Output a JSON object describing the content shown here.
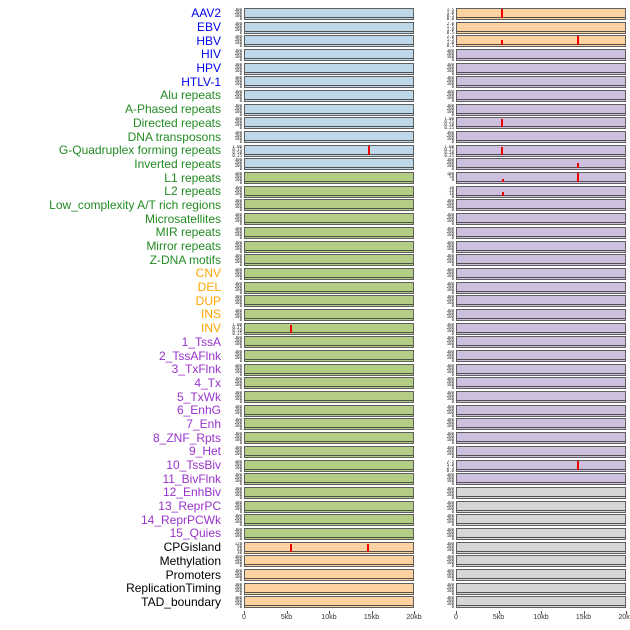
{
  "palette": {
    "label_colors": {
      "virus": "#0000ee",
      "repeat": "#228b22",
      "sv": "#ffa500",
      "chromhmm": "#9932cc",
      "other": "#000000"
    },
    "panel_colors": {
      "blue": "#bed8ea",
      "green": "#b3cd84",
      "peach": "#fcd2a0",
      "purple": "#cdc0df",
      "gray": "#d6d6d6"
    },
    "spike_color": "#ee0000",
    "baseline_color": "#3a3a3a",
    "axis_text_color": "#333333"
  },
  "chart_data": {
    "type": "line",
    "title": "",
    "description": "44 genomic feature tracks (virus, repeat, structural variant, chromatin state, regulatory), each with two signal panels over a 0-20kb window; flat baseline at 0 with isolated red peaks",
    "x_range_kb": [
      0,
      20
    ],
    "x_ticks": [
      "0",
      "5kb",
      "10kb",
      "15kb",
      "20kb"
    ],
    "x_tick_positions": [
      0,
      0.25,
      0.5,
      0.75,
      1
    ],
    "default_yticks": [
      "300",
      "200",
      "100",
      "0"
    ],
    "legend_position": "none",
    "grid": false,
    "rows": [
      {
        "label": "AAV2",
        "group": "virus",
        "left": {
          "bg": "blue"
        },
        "right": {
          "bg": "peach",
          "yticks": [
            "1.5",
            "1.0",
            "0.5",
            "0.0"
          ],
          "spikes": [
            {
              "x_kb": 5.3,
              "h": 0.85
            }
          ]
        }
      },
      {
        "label": "EBV",
        "group": "virus",
        "left": {
          "bg": "blue"
        },
        "right": {
          "bg": "peach",
          "yticks": [
            "2.0",
            "1.5",
            "1.0",
            "0.5",
            "0.0"
          ]
        }
      },
      {
        "label": "HBV",
        "group": "virus",
        "left": {
          "bg": "blue"
        },
        "right": {
          "bg": "peach",
          "yticks": [
            "2.0",
            "1.5",
            "1.0",
            "0.5",
            "0.0"
          ],
          "spikes": [
            {
              "x_kb": 5.3,
              "h": 0.5
            },
            {
              "x_kb": 14.4,
              "h": 0.9
            }
          ]
        }
      },
      {
        "label": "HIV",
        "group": "virus",
        "left": {
          "bg": "blue"
        },
        "right": {
          "bg": "purple"
        }
      },
      {
        "label": "HPV",
        "group": "virus",
        "left": {
          "bg": "blue"
        },
        "right": {
          "bg": "purple"
        }
      },
      {
        "label": "HTLV-1",
        "group": "virus",
        "left": {
          "bg": "blue"
        },
        "right": {
          "bg": "purple"
        }
      },
      {
        "label": "Alu repeats",
        "group": "repeat",
        "left": {
          "bg": "blue"
        },
        "right": {
          "bg": "purple"
        }
      },
      {
        "label": "A-Phased repeats",
        "group": "repeat",
        "left": {
          "bg": "blue"
        },
        "right": {
          "bg": "purple"
        }
      },
      {
        "label": "Directed repeats",
        "group": "repeat",
        "left": {
          "bg": "blue"
        },
        "right": {
          "bg": "purple",
          "yticks": [
            "1.00",
            "0.75",
            "0.50",
            "0.25",
            "0.00"
          ],
          "spikes": [
            {
              "x_kb": 5.3,
              "h": 0.8
            }
          ]
        }
      },
      {
        "label": "DNA transposons",
        "group": "repeat",
        "left": {
          "bg": "blue"
        },
        "right": {
          "bg": "purple"
        }
      },
      {
        "label": "G-Quadruplex forming repeats",
        "group": "repeat",
        "left": {
          "bg": "blue",
          "yticks": [
            "1.00",
            "0.75",
            "0.50",
            "0.25",
            "0.00"
          ],
          "spikes": [
            {
              "x_kb": 14.8,
              "h": 0.85
            }
          ]
        },
        "right": {
          "bg": "purple",
          "yticks": [
            "1.00",
            "0.75",
            "0.50",
            "0.25",
            "0.00"
          ],
          "spikes": [
            {
              "x_kb": 5.3,
              "h": 0.8
            }
          ]
        }
      },
      {
        "label": "Inverted repeats",
        "group": "repeat",
        "left": {
          "bg": "blue"
        },
        "right": {
          "bg": "purple",
          "spikes": [
            {
              "x_kb": 14.4,
              "h": 0.45
            }
          ]
        }
      },
      {
        "label": "L1 repeats",
        "group": "repeat",
        "left": {
          "bg": "green"
        },
        "right": {
          "bg": "purple",
          "yticks": [
            "100",
            "50",
            "0"
          ],
          "spikes": [
            {
              "x_kb": 5.5,
              "h": 0.25
            },
            {
              "x_kb": 14.4,
              "h": 0.9
            }
          ]
        }
      },
      {
        "label": "L2 repeats",
        "group": "repeat",
        "left": {
          "bg": "green"
        },
        "right": {
          "bg": "purple",
          "yticks": [
            "30",
            "20",
            "10",
            "0"
          ],
          "spikes": [
            {
              "x_kb": 5.5,
              "h": 0.35
            }
          ]
        }
      },
      {
        "label": "Low_complexity A/T rich regions",
        "group": "repeat",
        "left": {
          "bg": "green"
        },
        "right": {
          "bg": "purple"
        }
      },
      {
        "label": "Microsatellites",
        "group": "repeat",
        "left": {
          "bg": "green"
        },
        "right": {
          "bg": "purple"
        }
      },
      {
        "label": "MIR repeats",
        "group": "repeat",
        "left": {
          "bg": "green"
        },
        "right": {
          "bg": "purple"
        }
      },
      {
        "label": "Mirror repeats",
        "group": "repeat",
        "left": {
          "bg": "green"
        },
        "right": {
          "bg": "purple"
        }
      },
      {
        "label": "Z-DNA motifs",
        "group": "repeat",
        "left": {
          "bg": "green"
        },
        "right": {
          "bg": "purple"
        }
      },
      {
        "label": "CNV",
        "group": "sv",
        "left": {
          "bg": "green"
        },
        "right": {
          "bg": "purple"
        }
      },
      {
        "label": "DEL",
        "group": "sv",
        "left": {
          "bg": "green"
        },
        "right": {
          "bg": "purple"
        }
      },
      {
        "label": "DUP",
        "group": "sv",
        "left": {
          "bg": "green"
        },
        "right": {
          "bg": "purple"
        }
      },
      {
        "label": "INS",
        "group": "sv",
        "left": {
          "bg": "green"
        },
        "right": {
          "bg": "purple"
        }
      },
      {
        "label": "INV",
        "group": "sv",
        "left": {
          "bg": "green",
          "yticks": [
            "1.00",
            "0.75",
            "0.50",
            "0.25",
            "0.00"
          ],
          "spikes": [
            {
              "x_kb": 5.5,
              "h": 0.8
            }
          ]
        },
        "right": {
          "bg": "purple"
        }
      },
      {
        "label": "1_TssA",
        "group": "chromhmm",
        "left": {
          "bg": "green"
        },
        "right": {
          "bg": "purple"
        }
      },
      {
        "label": "2_TssAFlnk",
        "group": "chromhmm",
        "left": {
          "bg": "green"
        },
        "right": {
          "bg": "purple"
        }
      },
      {
        "label": "3_TxFlnk",
        "group": "chromhmm",
        "left": {
          "bg": "green"
        },
        "right": {
          "bg": "purple"
        }
      },
      {
        "label": "4_Tx",
        "group": "chromhmm",
        "left": {
          "bg": "green"
        },
        "right": {
          "bg": "purple"
        }
      },
      {
        "label": "5_TxWk",
        "group": "chromhmm",
        "left": {
          "bg": "green"
        },
        "right": {
          "bg": "purple"
        }
      },
      {
        "label": "6_EnhG",
        "group": "chromhmm",
        "left": {
          "bg": "green"
        },
        "right": {
          "bg": "purple"
        }
      },
      {
        "label": "7_Enh",
        "group": "chromhmm",
        "left": {
          "bg": "green"
        },
        "right": {
          "bg": "purple"
        }
      },
      {
        "label": "8_ZNF_Rpts",
        "group": "chromhmm",
        "left": {
          "bg": "green"
        },
        "right": {
          "bg": "purple"
        }
      },
      {
        "label": "9_Het",
        "group": "chromhmm",
        "left": {
          "bg": "green"
        },
        "right": {
          "bg": "purple"
        }
      },
      {
        "label": "10_TssBiv",
        "group": "chromhmm",
        "left": {
          "bg": "green"
        },
        "right": {
          "bg": "purple",
          "yticks": [
            "7.5",
            "5.0",
            "2.5",
            "0.0"
          ],
          "spikes": [
            {
              "x_kb": 14.4,
              "h": 0.85
            }
          ]
        }
      },
      {
        "label": "11_BivFlnk",
        "group": "chromhmm",
        "left": {
          "bg": "green"
        },
        "right": {
          "bg": "purple"
        }
      },
      {
        "label": "12_EnhBiv",
        "group": "chromhmm",
        "left": {
          "bg": "green"
        },
        "right": {
          "bg": "gray"
        }
      },
      {
        "label": "13_ReprPC",
        "group": "chromhmm",
        "left": {
          "bg": "green"
        },
        "right": {
          "bg": "gray"
        }
      },
      {
        "label": "14_ReprPCWk",
        "group": "chromhmm",
        "left": {
          "bg": "green"
        },
        "right": {
          "bg": "gray"
        }
      },
      {
        "label": "15_Quies",
        "group": "chromhmm",
        "left": {
          "bg": "green"
        },
        "right": {
          "bg": "gray"
        }
      },
      {
        "label": "CPGisland",
        "group": "other",
        "left": {
          "bg": "peach",
          "yticks": [
            "120",
            "90",
            "60",
            "30"
          ],
          "spikes": [
            {
              "x_kb": 5.5,
              "h": 0.8
            },
            {
              "x_kb": 14.6,
              "h": 0.75
            }
          ]
        },
        "right": {
          "bg": "gray"
        }
      },
      {
        "label": "Methylation",
        "group": "other",
        "left": {
          "bg": "peach"
        },
        "right": {
          "bg": "gray"
        }
      },
      {
        "label": "Promoters",
        "group": "other",
        "left": {
          "bg": "peach"
        },
        "right": {
          "bg": "gray"
        }
      },
      {
        "label": "ReplicationTiming",
        "group": "other",
        "left": {
          "bg": "peach"
        },
        "right": {
          "bg": "gray"
        }
      },
      {
        "label": "TAD_boundary",
        "group": "other",
        "left": {
          "bg": "peach"
        },
        "right": {
          "bg": "gray"
        }
      }
    ]
  }
}
